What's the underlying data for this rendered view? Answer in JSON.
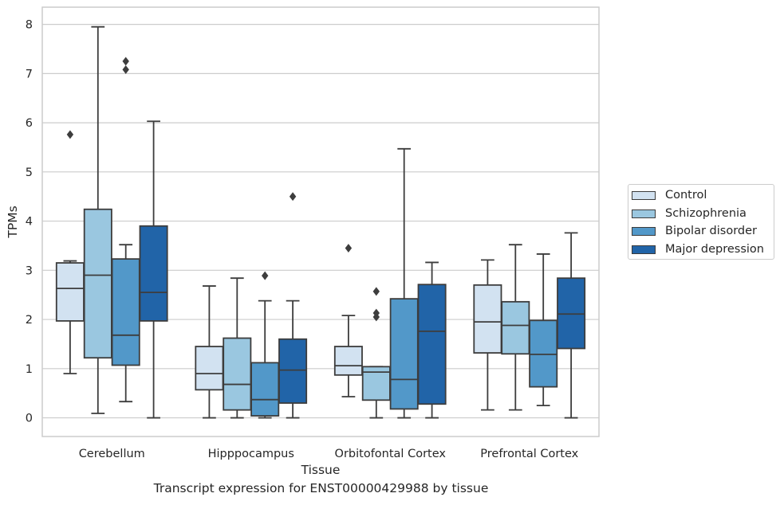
{
  "chart_data": {
    "type": "box",
    "xlabel": "Tissue",
    "ylabel": "TPMs",
    "ylim": [
      -0.38,
      8.35
    ],
    "yticks": [
      0,
      1,
      2,
      3,
      4,
      5,
      6,
      7,
      8
    ],
    "grid": "horizontal",
    "legend_position": "right",
    "categories": [
      "Cerebellum",
      "Hipppocampus",
      "Orbitofontal Cortex",
      "Prefrontal Cortex"
    ],
    "series": [
      {
        "name": "Control",
        "color": "#d2e2f1",
        "boxes": [
          {
            "whisker_low": 0.9,
            "q1": 1.97,
            "median": 2.63,
            "q3": 3.15,
            "whisker_high": 3.19,
            "outliers": [
              5.76
            ]
          },
          {
            "whisker_low": 0.0,
            "q1": 0.57,
            "median": 0.9,
            "q3": 1.45,
            "whisker_high": 2.68,
            "outliers": []
          },
          {
            "whisker_low": 0.43,
            "q1": 0.87,
            "median": 1.06,
            "q3": 1.45,
            "whisker_high": 2.08,
            "outliers": [
              3.45
            ]
          },
          {
            "whisker_low": 0.16,
            "q1": 1.32,
            "median": 1.95,
            "q3": 2.7,
            "whisker_high": 3.21,
            "outliers": []
          }
        ]
      },
      {
        "name": "Schizophrenia",
        "color": "#9ac7e0",
        "boxes": [
          {
            "whisker_low": 0.09,
            "q1": 1.22,
            "median": 2.9,
            "q3": 4.24,
            "whisker_high": 7.95,
            "outliers": []
          },
          {
            "whisker_low": 0.0,
            "q1": 0.16,
            "median": 0.68,
            "q3": 1.62,
            "whisker_high": 2.84,
            "outliers": []
          },
          {
            "whisker_low": 0.0,
            "q1": 0.36,
            "median": 0.93,
            "q3": 1.04,
            "whisker_high": 1.04,
            "outliers": [
              2.05,
              2.13,
              2.57
            ]
          },
          {
            "whisker_low": 0.16,
            "q1": 1.3,
            "median": 1.88,
            "q3": 2.36,
            "whisker_high": 3.52,
            "outliers": []
          }
        ]
      },
      {
        "name": "Bipolar disorder",
        "color": "#5298c9",
        "boxes": [
          {
            "whisker_low": 0.33,
            "q1": 1.07,
            "median": 1.68,
            "q3": 3.23,
            "whisker_high": 3.52,
            "outliers": [
              7.08,
              7.25
            ]
          },
          {
            "whisker_low": 0.0,
            "q1": 0.04,
            "median": 0.37,
            "q3": 1.12,
            "whisker_high": 2.38,
            "outliers": [
              2.89
            ]
          },
          {
            "whisker_low": 0.0,
            "q1": 0.18,
            "median": 0.78,
            "q3": 2.42,
            "whisker_high": 5.47,
            "outliers": []
          },
          {
            "whisker_low": 0.25,
            "q1": 0.63,
            "median": 1.29,
            "q3": 1.98,
            "whisker_high": 3.33,
            "outliers": []
          }
        ]
      },
      {
        "name": "Major depression",
        "color": "#2164a8",
        "boxes": [
          {
            "whisker_low": 0.0,
            "q1": 1.97,
            "median": 2.55,
            "q3": 3.9,
            "whisker_high": 6.03,
            "outliers": []
          },
          {
            "whisker_low": 0.0,
            "q1": 0.3,
            "median": 0.97,
            "q3": 1.6,
            "whisker_high": 2.38,
            "outliers": [
              4.5
            ]
          },
          {
            "whisker_low": 0.0,
            "q1": 0.28,
            "median": 1.76,
            "q3": 2.71,
            "whisker_high": 3.16,
            "outliers": []
          },
          {
            "whisker_low": 0.0,
            "q1": 1.41,
            "median": 2.11,
            "q3": 2.84,
            "whisker_high": 3.76,
            "outliers": []
          }
        ]
      }
    ],
    "caption": "Transcript expression for ENST00000429988 by tissue"
  }
}
